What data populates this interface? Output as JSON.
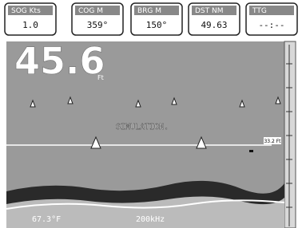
{
  "header": {
    "boxes": [
      {
        "label": "SOG Kts",
        "value": "1.0"
      },
      {
        "label": "COG M",
        "value": "359°"
      },
      {
        "label": "BRG M",
        "value": "150°"
      },
      {
        "label": "DST NM",
        "value": "49.63"
      },
      {
        "label": "TTG",
        "value": "--:--"
      }
    ]
  },
  "sonar": {
    "depth": "45.6",
    "depth_unit": "Ft",
    "mode": "SIMULATION.",
    "line_label": "33.2 Ft",
    "temperature": "67.3°F",
    "frequency": "200kHz"
  }
}
